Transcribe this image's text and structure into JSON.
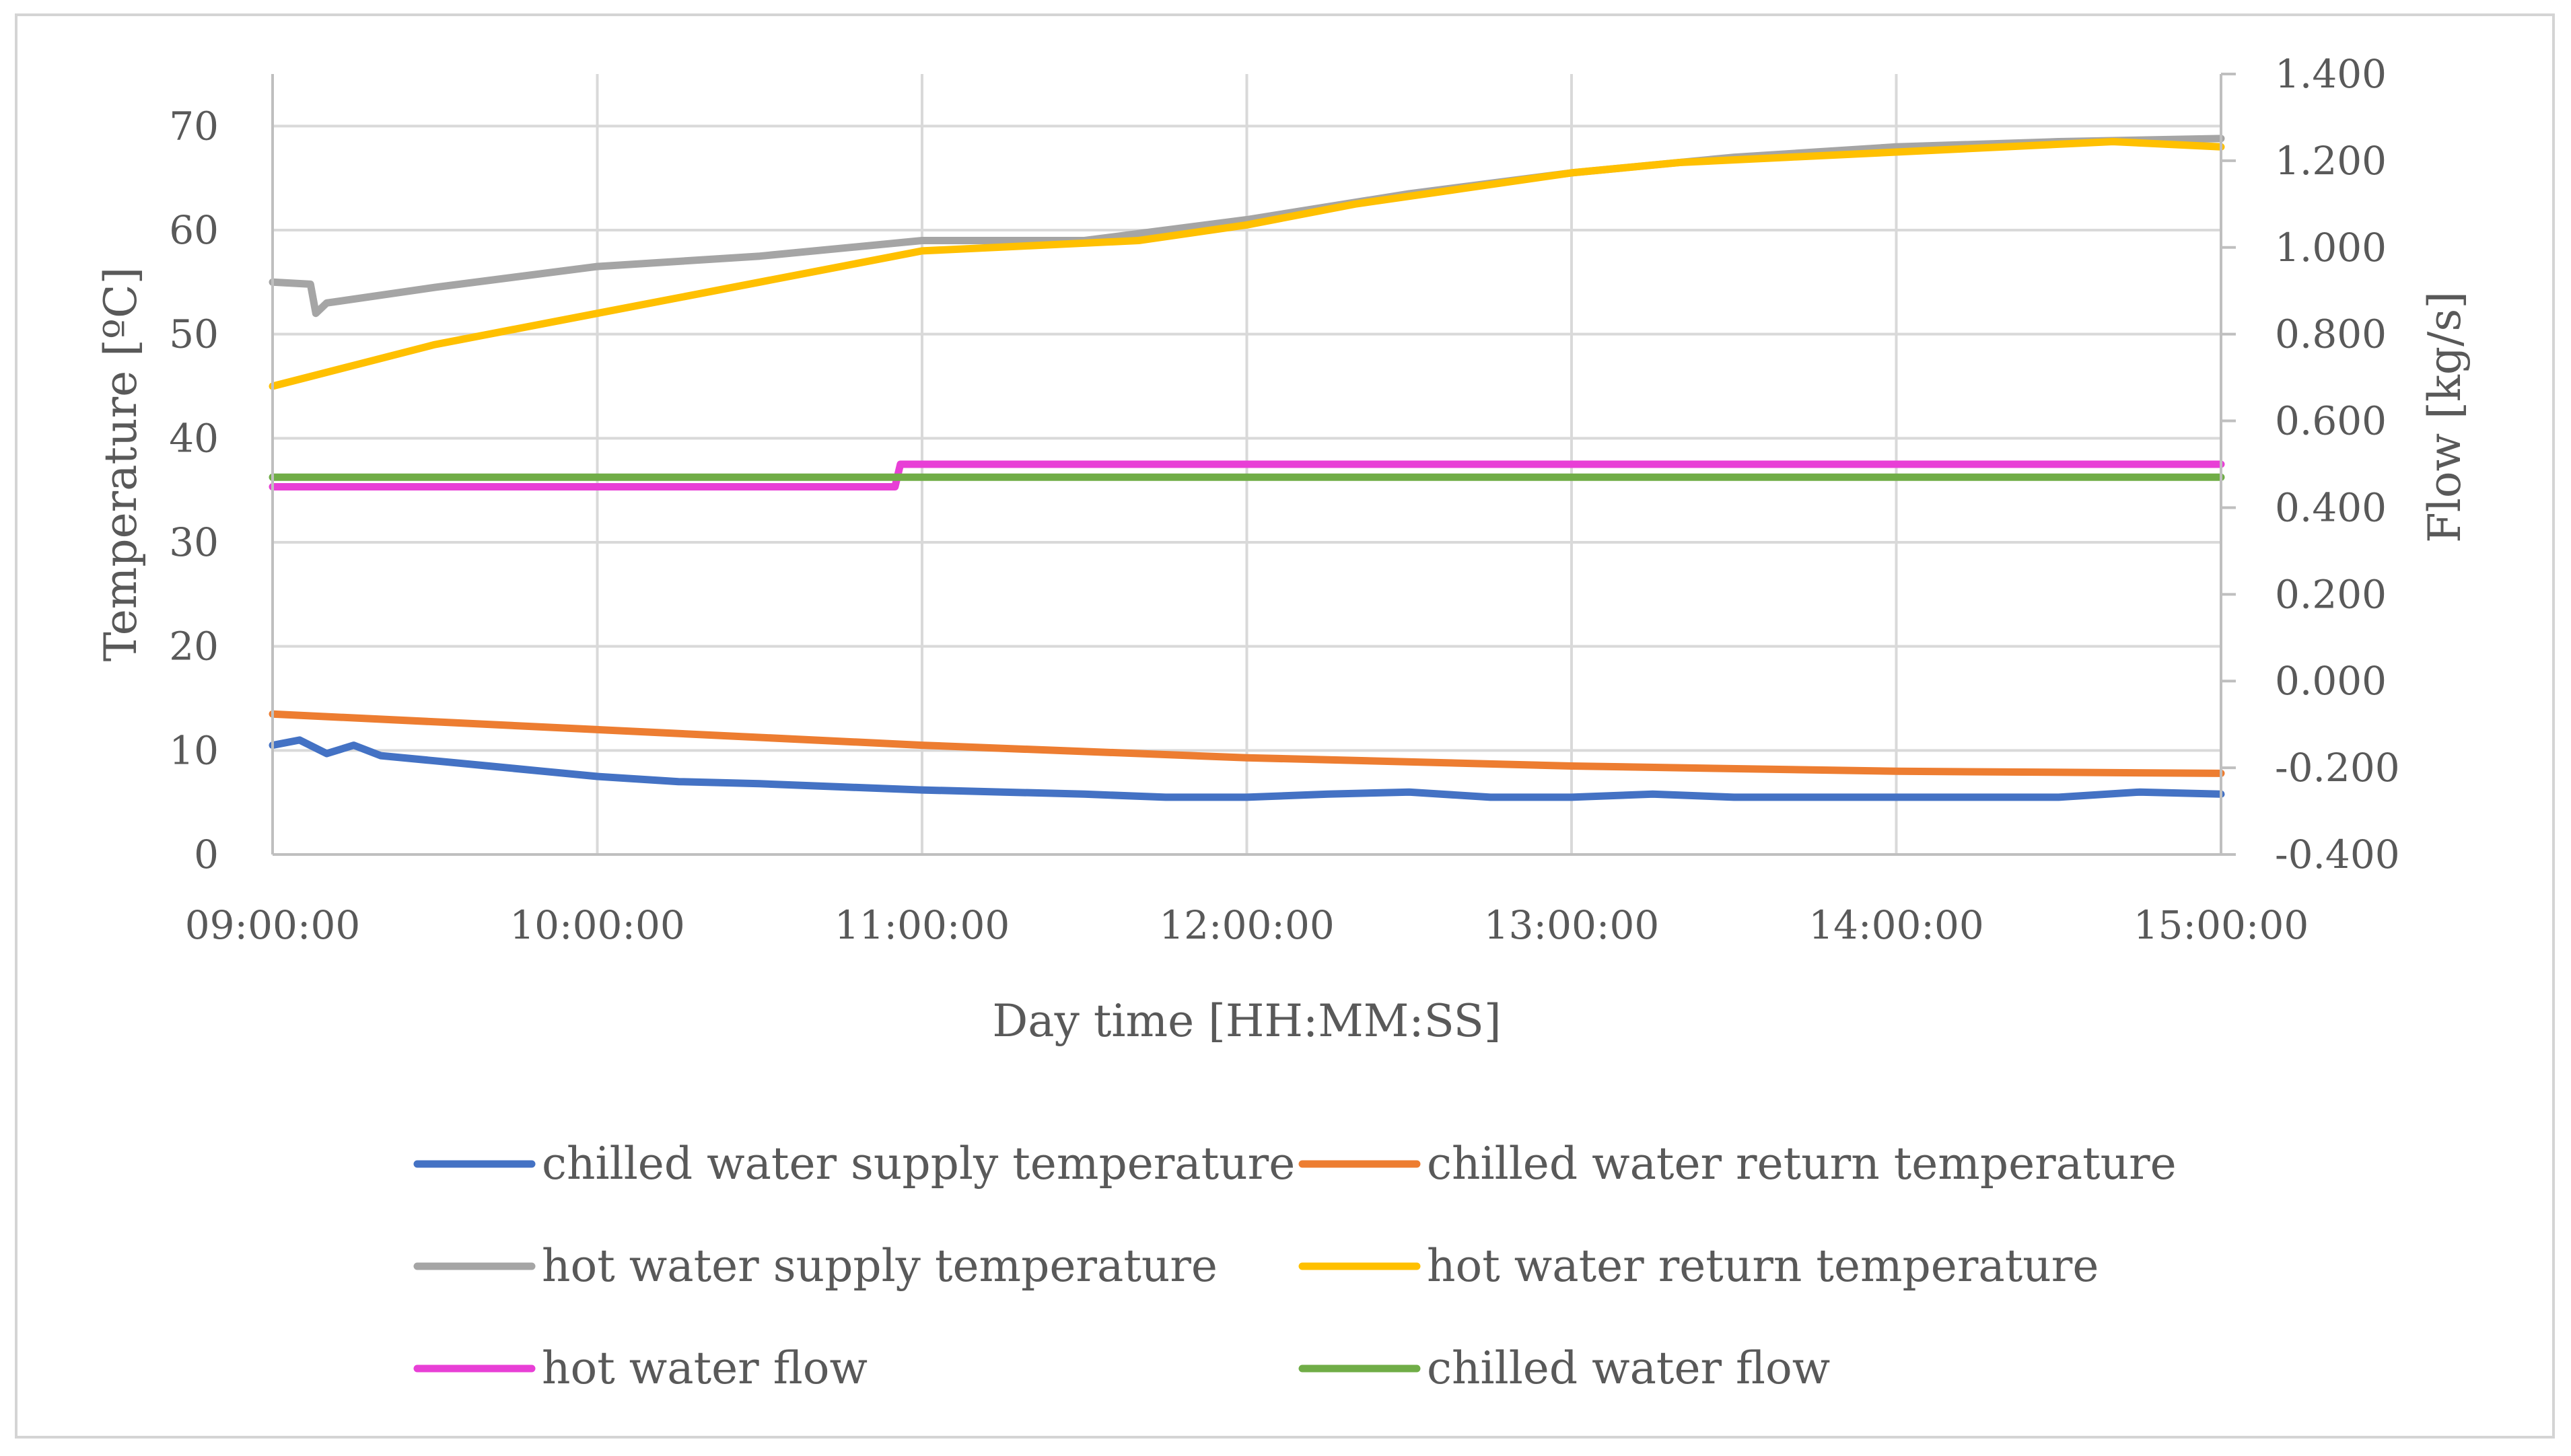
{
  "chart_data": {
    "type": "line",
    "xlabel": "Day time [HH:MM:SS]",
    "ylabel_left": "Temperature [ºC]",
    "ylabel_right": "Flow [kg/s]",
    "x_range": [
      "09:00:00",
      "15:00:00"
    ],
    "x_ticks": [
      "09:00:00",
      "10:00:00",
      "11:00:00",
      "12:00:00",
      "13:00:00",
      "14:00:00",
      "15:00:00"
    ],
    "y_left_range": [
      0,
      75
    ],
    "y_left_ticks": [
      "0",
      "10",
      "20",
      "30",
      "40",
      "50",
      "60",
      "70"
    ],
    "y_right_range": [
      -0.4,
      1.4
    ],
    "y_right_ticks": [
      "-0.400",
      "-0.200",
      "0.000",
      "0.200",
      "0.400",
      "0.600",
      "0.800",
      "1.000",
      "1.200",
      "1.400"
    ],
    "grid": true,
    "legend_position": "bottom",
    "series": [
      {
        "name": "chilled water supply temperature",
        "axis": "left",
        "color": "#4472c4",
        "points": [
          [
            "09:00:00",
            10.5
          ],
          [
            "09:05:00",
            11.0
          ],
          [
            "09:10:00",
            9.7
          ],
          [
            "09:15:00",
            10.5
          ],
          [
            "09:20:00",
            9.5
          ],
          [
            "09:30:00",
            9.0
          ],
          [
            "09:40:00",
            8.5
          ],
          [
            "09:50:00",
            8.0
          ],
          [
            "10:00:00",
            7.5
          ],
          [
            "10:15:00",
            7.0
          ],
          [
            "10:30:00",
            6.8
          ],
          [
            "10:45:00",
            6.5
          ],
          [
            "11:00:00",
            6.2
          ],
          [
            "11:15:00",
            6.0
          ],
          [
            "11:30:00",
            5.8
          ],
          [
            "11:45:00",
            5.5
          ],
          [
            "12:00:00",
            5.5
          ],
          [
            "12:15:00",
            5.8
          ],
          [
            "12:30:00",
            6.0
          ],
          [
            "12:45:00",
            5.5
          ],
          [
            "13:00:00",
            5.5
          ],
          [
            "13:15:00",
            5.8
          ],
          [
            "13:30:00",
            5.5
          ],
          [
            "13:45:00",
            5.5
          ],
          [
            "14:00:00",
            5.5
          ],
          [
            "14:15:00",
            5.5
          ],
          [
            "14:30:00",
            5.5
          ],
          [
            "14:45:00",
            6.0
          ],
          [
            "15:00:00",
            5.8
          ]
        ]
      },
      {
        "name": "chilled water return temperature",
        "axis": "left",
        "color": "#ed7d31",
        "points": [
          [
            "09:00:00",
            13.5
          ],
          [
            "10:00:00",
            12.0
          ],
          [
            "11:00:00",
            10.5
          ],
          [
            "12:00:00",
            9.3
          ],
          [
            "13:00:00",
            8.5
          ],
          [
            "14:00:00",
            8.0
          ],
          [
            "15:00:00",
            7.8
          ]
        ]
      },
      {
        "name": "hot water supply temperature",
        "axis": "left",
        "color": "#a5a5a5",
        "points": [
          [
            "09:00:00",
            55.0
          ],
          [
            "09:07:00",
            54.8
          ],
          [
            "09:08:00",
            52.0
          ],
          [
            "09:10:00",
            53.0
          ],
          [
            "09:30:00",
            54.5
          ],
          [
            "10:00:00",
            56.5
          ],
          [
            "10:30:00",
            57.5
          ],
          [
            "11:00:00",
            59.0
          ],
          [
            "11:30:00",
            59.0
          ],
          [
            "12:00:00",
            61.0
          ],
          [
            "12:30:00",
            63.5
          ],
          [
            "13:00:00",
            65.5
          ],
          [
            "13:30:00",
            67.0
          ],
          [
            "14:00:00",
            68.0
          ],
          [
            "14:30:00",
            68.5
          ],
          [
            "15:00:00",
            68.8
          ]
        ]
      },
      {
        "name": "hot water return temperature",
        "axis": "left",
        "color": "#ffc000",
        "points": [
          [
            "09:00:00",
            45.0
          ],
          [
            "09:15:00",
            47.0
          ],
          [
            "09:30:00",
            49.0
          ],
          [
            "09:45:00",
            50.5
          ],
          [
            "10:00:00",
            52.0
          ],
          [
            "10:15:00",
            53.5
          ],
          [
            "10:30:00",
            55.0
          ],
          [
            "10:45:00",
            56.5
          ],
          [
            "11:00:00",
            58.0
          ],
          [
            "11:20:00",
            58.5
          ],
          [
            "11:40:00",
            59.0
          ],
          [
            "12:00:00",
            60.5
          ],
          [
            "12:20:00",
            62.5
          ],
          [
            "12:40:00",
            64.0
          ],
          [
            "13:00:00",
            65.5
          ],
          [
            "13:20:00",
            66.5
          ],
          [
            "13:40:00",
            67.0
          ],
          [
            "14:00:00",
            67.5
          ],
          [
            "14:20:00",
            68.0
          ],
          [
            "14:40:00",
            68.5
          ],
          [
            "15:00:00",
            68.0
          ]
        ]
      },
      {
        "name": "hot water flow",
        "axis": "right",
        "color": "#e83fd6",
        "points": [
          [
            "09:00:00",
            0.448
          ],
          [
            "10:00:00",
            0.448
          ],
          [
            "10:55:00",
            0.448
          ],
          [
            "10:56:00",
            0.5
          ],
          [
            "12:00:00",
            0.5
          ],
          [
            "13:00:00",
            0.5
          ],
          [
            "14:00:00",
            0.5
          ],
          [
            "15:00:00",
            0.5
          ]
        ]
      },
      {
        "name": "chilled water flow",
        "axis": "right",
        "color": "#70ad47",
        "points": [
          [
            "09:00:00",
            0.47
          ],
          [
            "10:00:00",
            0.47
          ],
          [
            "11:00:00",
            0.47
          ],
          [
            "12:00:00",
            0.47
          ],
          [
            "13:00:00",
            0.47
          ],
          [
            "14:00:00",
            0.47
          ],
          [
            "15:00:00",
            0.47
          ]
        ]
      }
    ]
  }
}
